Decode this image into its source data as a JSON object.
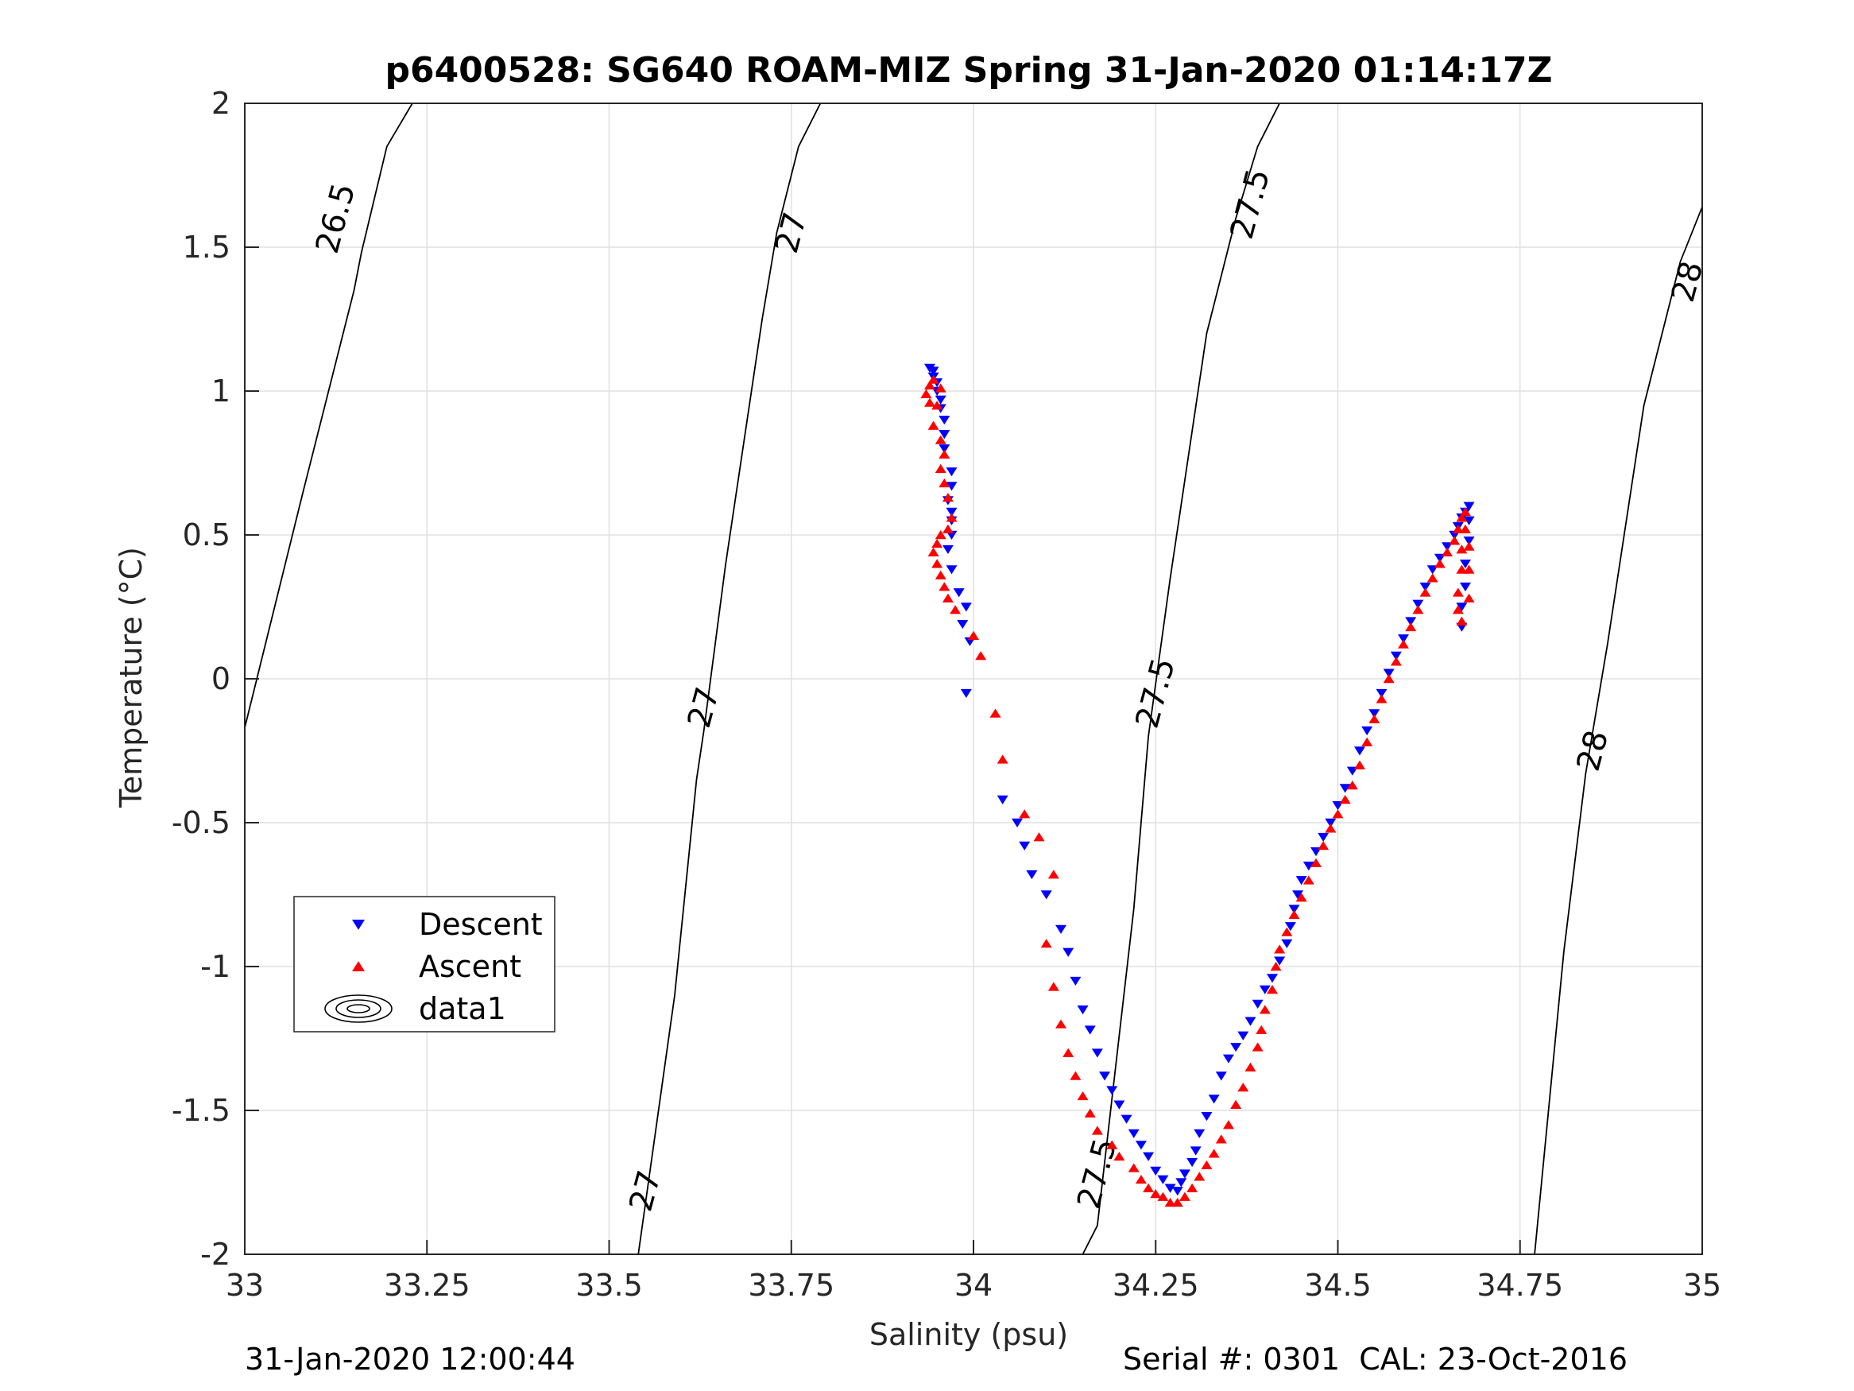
{
  "chart_data": {
    "type": "scatter",
    "title": "p6400528: SG640 ROAM-MIZ Spring 31-Jan-2020 01:14:17Z",
    "xlabel": "Salinity (psu)",
    "ylabel": "Temperature (°C)",
    "xlim": [
      33,
      35
    ],
    "ylim": [
      -2,
      2
    ],
    "x_ticks": [
      33,
      33.25,
      33.5,
      33.75,
      34,
      34.25,
      34.5,
      34.75,
      35
    ],
    "x_tick_labels": [
      "33",
      "33.25",
      "33.5",
      "33.75",
      "34",
      "34.25",
      "34.5",
      "34.75",
      "35"
    ],
    "y_ticks": [
      -2,
      -1.5,
      -1,
      -0.5,
      0,
      0.5,
      1,
      1.5,
      2
    ],
    "y_tick_labels": [
      "-2",
      "-1.5",
      "-1",
      "-0.5",
      "0",
      "0.5",
      "1",
      "1.5",
      "2"
    ],
    "grid": true,
    "legend_position": "lower-left",
    "legend": [
      {
        "label": "Descent",
        "marker": "triangle-down",
        "color": "#0000ff"
      },
      {
        "label": "Ascent",
        "marker": "triangle-up",
        "color": "#ff0000"
      },
      {
        "label": "data1",
        "marker": "contour"
      }
    ],
    "contours": [
      {
        "level": "26.5",
        "points": [
          [
            33.0,
            -0.17
          ],
          [
            33.08,
            0.65
          ],
          [
            33.15,
            1.35
          ],
          [
            33.16,
            1.48
          ],
          [
            33.195,
            1.85
          ],
          [
            33.23,
            2.0
          ]
        ]
      },
      {
        "level": "27",
        "points": [
          [
            33.54,
            -2.0
          ],
          [
            33.59,
            -1.1
          ],
          [
            33.62,
            -0.35
          ],
          [
            33.63,
            -0.18
          ],
          [
            33.66,
            0.4
          ],
          [
            33.71,
            1.25
          ],
          [
            33.73,
            1.55
          ],
          [
            33.76,
            1.85
          ],
          [
            33.79,
            2.0
          ]
        ]
      },
      {
        "level": "27.5",
        "points": [
          [
            34.15,
            -2.0
          ],
          [
            34.17,
            -1.9
          ],
          [
            34.22,
            -0.8
          ],
          [
            34.24,
            -0.2
          ],
          [
            34.27,
            0.35
          ],
          [
            34.32,
            1.2
          ],
          [
            34.36,
            1.6
          ],
          [
            34.39,
            1.85
          ],
          [
            34.42,
            2.0
          ]
        ]
      },
      {
        "level": "28",
        "points": [
          [
            34.77,
            -2.0
          ],
          [
            34.81,
            -0.95
          ],
          [
            34.84,
            -0.33
          ],
          [
            34.87,
            0.12
          ],
          [
            34.92,
            0.95
          ],
          [
            34.955,
            1.3
          ],
          [
            34.97,
            1.45
          ],
          [
            35.0,
            1.64
          ]
        ]
      }
    ],
    "contour_labels": [
      {
        "text": "26.5",
        "x": 33.125,
        "y": 1.6
      },
      {
        "text": "27",
        "x": 33.75,
        "y": 1.55
      },
      {
        "text": "27",
        "x": 33.63,
        "y": -0.1
      },
      {
        "text": "27",
        "x": 33.55,
        "y": -1.78
      },
      {
        "text": "27.5",
        "x": 34.38,
        "y": 1.65
      },
      {
        "text": "27.5",
        "x": 34.25,
        "y": -0.05
      },
      {
        "text": "27.5",
        "x": 34.17,
        "y": -1.72
      },
      {
        "text": "28",
        "x": 34.98,
        "y": 1.38
      },
      {
        "text": "28",
        "x": 34.85,
        "y": -0.25
      }
    ],
    "series": [
      {
        "name": "Descent",
        "marker": "triangle-down",
        "color": "#0000ff",
        "points": [
          [
            33.94,
            1.08
          ],
          [
            33.945,
            1.07
          ],
          [
            33.945,
            1.05
          ],
          [
            33.95,
            1.03
          ],
          [
            33.95,
            1.0
          ],
          [
            33.955,
            0.97
          ],
          [
            33.955,
            0.94
          ],
          [
            33.96,
            0.9
          ],
          [
            33.96,
            0.85
          ],
          [
            33.96,
            0.8
          ],
          [
            33.97,
            0.72
          ],
          [
            33.97,
            0.67
          ],
          [
            33.965,
            0.62
          ],
          [
            33.97,
            0.58
          ],
          [
            33.97,
            0.55
          ],
          [
            33.97,
            0.5
          ],
          [
            33.965,
            0.45
          ],
          [
            33.97,
            0.38
          ],
          [
            33.98,
            0.3
          ],
          [
            33.99,
            0.25
          ],
          [
            33.985,
            0.19
          ],
          [
            33.995,
            0.13
          ],
          [
            33.99,
            -0.05
          ],
          [
            34.04,
            -0.42
          ],
          [
            34.06,
            -0.5
          ],
          [
            34.07,
            -0.58
          ],
          [
            34.08,
            -0.68
          ],
          [
            34.1,
            -0.75
          ],
          [
            34.12,
            -0.87
          ],
          [
            34.13,
            -0.95
          ],
          [
            34.14,
            -1.05
          ],
          [
            34.15,
            -1.15
          ],
          [
            34.16,
            -1.22
          ],
          [
            34.17,
            -1.3
          ],
          [
            34.18,
            -1.38
          ],
          [
            34.19,
            -1.43
          ],
          [
            34.2,
            -1.48
          ],
          [
            34.21,
            -1.53
          ],
          [
            34.22,
            -1.58
          ],
          [
            34.23,
            -1.62
          ],
          [
            34.24,
            -1.66
          ],
          [
            34.25,
            -1.71
          ],
          [
            34.26,
            -1.74
          ],
          [
            34.27,
            -1.77
          ],
          [
            34.28,
            -1.78
          ],
          [
            34.285,
            -1.75
          ],
          [
            34.29,
            -1.72
          ],
          [
            34.3,
            -1.68
          ],
          [
            34.305,
            -1.64
          ],
          [
            34.31,
            -1.58
          ],
          [
            34.32,
            -1.52
          ],
          [
            34.33,
            -1.46
          ],
          [
            34.34,
            -1.38
          ],
          [
            34.35,
            -1.32
          ],
          [
            34.36,
            -1.28
          ],
          [
            34.37,
            -1.24
          ],
          [
            34.38,
            -1.19
          ],
          [
            34.39,
            -1.13
          ],
          [
            34.4,
            -1.08
          ],
          [
            34.41,
            -1.04
          ],
          [
            34.42,
            -0.98
          ],
          [
            34.43,
            -0.92
          ],
          [
            34.435,
            -0.86
          ],
          [
            34.44,
            -0.8
          ],
          [
            34.445,
            -0.75
          ],
          [
            34.45,
            -0.7
          ],
          [
            34.46,
            -0.65
          ],
          [
            34.47,
            -0.6
          ],
          [
            34.48,
            -0.55
          ],
          [
            34.49,
            -0.5
          ],
          [
            34.5,
            -0.44
          ],
          [
            34.51,
            -0.38
          ],
          [
            34.52,
            -0.32
          ],
          [
            34.53,
            -0.25
          ],
          [
            34.54,
            -0.18
          ],
          [
            34.55,
            -0.12
          ],
          [
            34.56,
            -0.05
          ],
          [
            34.57,
            0.02
          ],
          [
            34.58,
            0.08
          ],
          [
            34.59,
            0.14
          ],
          [
            34.6,
            0.2
          ],
          [
            34.61,
            0.26
          ],
          [
            34.62,
            0.32
          ],
          [
            34.63,
            0.38
          ],
          [
            34.64,
            0.42
          ],
          [
            34.65,
            0.46
          ],
          [
            34.66,
            0.5
          ],
          [
            34.665,
            0.53
          ],
          [
            34.67,
            0.56
          ],
          [
            34.675,
            0.58
          ],
          [
            34.68,
            0.6
          ],
          [
            34.68,
            0.55
          ],
          [
            34.68,
            0.48
          ],
          [
            34.675,
            0.4
          ],
          [
            34.675,
            0.32
          ],
          [
            34.67,
            0.25
          ],
          [
            34.67,
            0.18
          ]
        ]
      },
      {
        "name": "Ascent",
        "marker": "triangle-up",
        "color": "#ff0000",
        "points": [
          [
            33.94,
            0.96
          ],
          [
            33.935,
            0.99
          ],
          [
            33.94,
            1.02
          ],
          [
            33.945,
            1.04
          ],
          [
            33.955,
            1.01
          ],
          [
            33.95,
            0.95
          ],
          [
            33.945,
            0.88
          ],
          [
            33.955,
            0.83
          ],
          [
            33.96,
            0.78
          ],
          [
            33.955,
            0.73
          ],
          [
            33.96,
            0.68
          ],
          [
            33.965,
            0.63
          ],
          [
            33.97,
            0.56
          ],
          [
            33.965,
            0.52
          ],
          [
            33.955,
            0.5
          ],
          [
            33.95,
            0.47
          ],
          [
            33.945,
            0.44
          ],
          [
            33.95,
            0.4
          ],
          [
            33.955,
            0.36
          ],
          [
            33.96,
            0.32
          ],
          [
            33.965,
            0.28
          ],
          [
            33.975,
            0.24
          ],
          [
            34.0,
            0.15
          ],
          [
            34.01,
            0.08
          ],
          [
            34.03,
            -0.12
          ],
          [
            34.04,
            -0.28
          ],
          [
            34.07,
            -0.47
          ],
          [
            34.09,
            -0.55
          ],
          [
            34.11,
            -0.68
          ],
          [
            34.1,
            -0.92
          ],
          [
            34.11,
            -1.07
          ],
          [
            34.12,
            -1.2
          ],
          [
            34.13,
            -1.3
          ],
          [
            34.14,
            -1.38
          ],
          [
            34.15,
            -1.45
          ],
          [
            34.16,
            -1.51
          ],
          [
            34.17,
            -1.57
          ],
          [
            34.19,
            -1.62
          ],
          [
            34.2,
            -1.66
          ],
          [
            34.22,
            -1.7
          ],
          [
            34.23,
            -1.74
          ],
          [
            34.24,
            -1.77
          ],
          [
            34.25,
            -1.79
          ],
          [
            34.26,
            -1.8
          ],
          [
            34.27,
            -1.82
          ],
          [
            34.28,
            -1.82
          ],
          [
            34.29,
            -1.8
          ],
          [
            34.3,
            -1.77
          ],
          [
            34.31,
            -1.73
          ],
          [
            34.32,
            -1.69
          ],
          [
            34.33,
            -1.65
          ],
          [
            34.34,
            -1.6
          ],
          [
            34.35,
            -1.55
          ],
          [
            34.36,
            -1.48
          ],
          [
            34.37,
            -1.42
          ],
          [
            34.38,
            -1.35
          ],
          [
            34.39,
            -1.28
          ],
          [
            34.395,
            -1.22
          ],
          [
            34.4,
            -1.15
          ],
          [
            34.41,
            -1.08
          ],
          [
            34.415,
            -1.0
          ],
          [
            34.42,
            -0.94
          ],
          [
            34.43,
            -0.88
          ],
          [
            34.44,
            -0.82
          ],
          [
            34.45,
            -0.76
          ],
          [
            34.46,
            -0.7
          ],
          [
            34.47,
            -0.64
          ],
          [
            34.48,
            -0.58
          ],
          [
            34.49,
            -0.52
          ],
          [
            34.5,
            -0.47
          ],
          [
            34.51,
            -0.42
          ],
          [
            34.52,
            -0.37
          ],
          [
            34.53,
            -0.3
          ],
          [
            34.54,
            -0.22
          ],
          [
            34.55,
            -0.14
          ],
          [
            34.56,
            -0.07
          ],
          [
            34.57,
            0.0
          ],
          [
            34.58,
            0.06
          ],
          [
            34.59,
            0.12
          ],
          [
            34.6,
            0.18
          ],
          [
            34.61,
            0.24
          ],
          [
            34.62,
            0.3
          ],
          [
            34.63,
            0.35
          ],
          [
            34.64,
            0.4
          ],
          [
            34.65,
            0.44
          ],
          [
            34.66,
            0.48
          ],
          [
            34.665,
            0.52
          ],
          [
            34.67,
            0.56
          ],
          [
            34.675,
            0.58
          ],
          [
            34.675,
            0.52
          ],
          [
            34.67,
            0.45
          ],
          [
            34.67,
            0.38
          ],
          [
            34.665,
            0.3
          ],
          [
            34.665,
            0.24
          ],
          [
            34.67,
            0.2
          ],
          [
            34.68,
            0.28
          ],
          [
            34.68,
            0.38
          ],
          [
            34.68,
            0.46
          ]
        ]
      }
    ]
  },
  "footer": {
    "left": "31-Jan-2020 12:00:44",
    "right": "Serial #: 0301  CAL: 23-Oct-2016"
  }
}
